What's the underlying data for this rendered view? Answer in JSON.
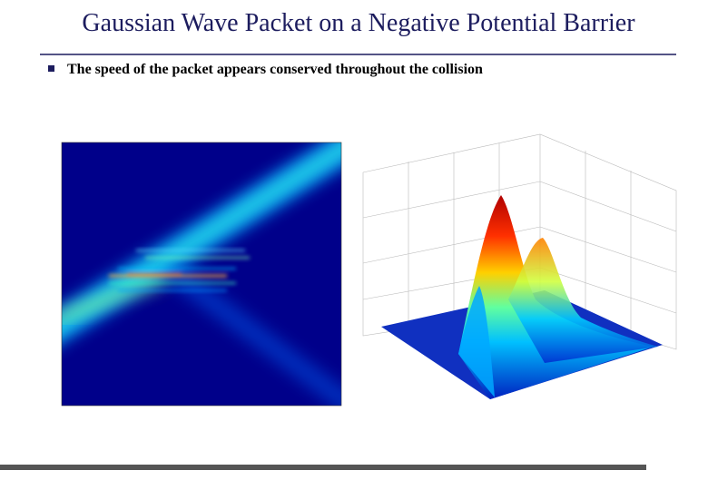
{
  "title": "Gaussian Wave Packet on a Negative Potential Barrier",
  "bullets": [
    "The speed of the packet appears conserved throughout the collision"
  ]
}
